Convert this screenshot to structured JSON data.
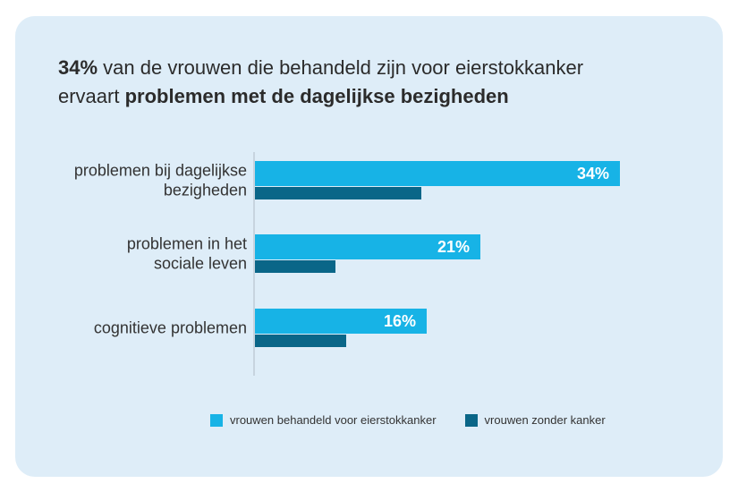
{
  "title": {
    "highlight_value": "34%",
    "line1_rest": " van de vrouwen die behandeld zijn voor eierstokkanker",
    "line2_prefix": "ervaart ",
    "line2_bold": "problemen met de dagelijkse bezigheden"
  },
  "colors": {
    "card_bg": "#deedf8",
    "series_light": "#17b3e6",
    "series_dark": "#0a6688",
    "axis": "#b0bcc6"
  },
  "chart_data": {
    "type": "bar",
    "orientation": "horizontal",
    "categories": [
      [
        "problemen bij dagelijkse",
        "bezigheden"
      ],
      [
        "problemen in het",
        "sociale leven"
      ],
      [
        "cognitieve problemen"
      ]
    ],
    "series": [
      {
        "name": "vrouwen behandeld voor eierstokkanker",
        "values": [
          34,
          21,
          16
        ],
        "labels": [
          "34%",
          "21%",
          "16%"
        ]
      },
      {
        "name": "vrouwen zonder kanker",
        "values": [
          15.5,
          7.5,
          8.5
        ]
      }
    ],
    "xlim": [
      0,
      40
    ],
    "axis_labels": false,
    "legend_position": "bottom"
  }
}
